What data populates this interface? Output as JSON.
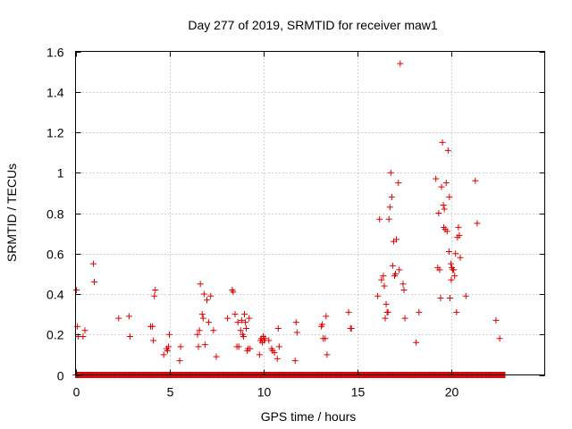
{
  "chart_data": {
    "type": "scatter",
    "title": "Day 277 of 2019, SRMTID for receiver maw1",
    "xlabel": "GPS time / hours",
    "ylabel": "SRMTID / TECUs",
    "xlim": [
      0,
      25
    ],
    "ylim": [
      0,
      1.6
    ],
    "grid": true,
    "x_ticks": [
      0,
      5,
      10,
      15,
      20
    ],
    "x_tick_labels": [
      "0",
      "5",
      "10",
      "15",
      "20"
    ],
    "y_ticks": [
      0,
      0.2,
      0.4,
      0.6,
      0.8,
      1.0,
      1.2,
      1.4,
      1.6
    ],
    "y_tick_labels": [
      "0",
      "0.2",
      "0.4",
      "0.6",
      "0.8",
      "1",
      "1.2",
      "1.4",
      "1.6"
    ],
    "marker": "plus",
    "color": "#dd0000",
    "baseline_zero_range": [
      0,
      22.9
    ],
    "series": [
      {
        "name": "maw1",
        "points": [
          [
            0.05,
            0.42
          ],
          [
            0.1,
            0.24
          ],
          [
            0.15,
            0.19
          ],
          [
            0.4,
            0.19
          ],
          [
            0.5,
            0.22
          ],
          [
            0.95,
            0.55
          ],
          [
            1.0,
            0.46
          ],
          [
            2.3,
            0.28
          ],
          [
            2.85,
            0.29
          ],
          [
            2.9,
            0.19
          ],
          [
            4.0,
            0.24
          ],
          [
            4.1,
            0.24
          ],
          [
            4.15,
            0.17
          ],
          [
            4.2,
            0.39
          ],
          [
            4.25,
            0.42
          ],
          [
            4.7,
            0.1
          ],
          [
            4.85,
            0.13
          ],
          [
            4.9,
            0.12
          ],
          [
            4.95,
            0.14
          ],
          [
            5.0,
            0.2
          ],
          [
            5.55,
            0.07
          ],
          [
            5.6,
            0.14
          ],
          [
            6.5,
            0.2
          ],
          [
            6.55,
            0.14
          ],
          [
            6.6,
            0.22
          ],
          [
            6.65,
            0.45
          ],
          [
            6.75,
            0.3
          ],
          [
            6.8,
            0.28
          ],
          [
            6.85,
            0.4
          ],
          [
            6.9,
            0.15
          ],
          [
            7.0,
            0.37
          ],
          [
            7.1,
            0.26
          ],
          [
            7.2,
            0.39
          ],
          [
            7.35,
            0.22
          ],
          [
            7.5,
            0.09
          ],
          [
            8.1,
            0.28
          ],
          [
            8.35,
            0.42
          ],
          [
            8.4,
            0.41
          ],
          [
            8.5,
            0.3
          ],
          [
            8.6,
            0.14
          ],
          [
            8.65,
            0.26
          ],
          [
            8.7,
            0.14
          ],
          [
            8.8,
            0.22
          ],
          [
            8.85,
            0.27
          ],
          [
            8.9,
            0.2
          ],
          [
            8.95,
            0.19
          ],
          [
            9.0,
            0.3
          ],
          [
            9.05,
            0.26
          ],
          [
            9.1,
            0.23
          ],
          [
            9.15,
            0.12
          ],
          [
            9.2,
            0.13
          ],
          [
            9.25,
            0.28
          ],
          [
            9.3,
            0.13
          ],
          [
            9.8,
            0.1
          ],
          [
            9.85,
            0.17
          ],
          [
            9.9,
            0.18
          ],
          [
            9.95,
            0.16
          ],
          [
            10.0,
            0.19
          ],
          [
            10.05,
            0.17
          ],
          [
            10.1,
            0.18
          ],
          [
            10.3,
            0.17
          ],
          [
            10.45,
            0.13
          ],
          [
            10.5,
            0.12
          ],
          [
            10.6,
            0.11
          ],
          [
            10.75,
            0.08
          ],
          [
            10.8,
            0.23
          ],
          [
            10.85,
            0.14
          ],
          [
            11.7,
            0.07
          ],
          [
            11.75,
            0.26
          ],
          [
            11.8,
            0.21
          ],
          [
            13.1,
            0.24
          ],
          [
            13.15,
            0.25
          ],
          [
            13.2,
            0.18
          ],
          [
            13.3,
            0.18
          ],
          [
            13.35,
            0.29
          ],
          [
            13.4,
            0.1
          ],
          [
            14.55,
            0.31
          ],
          [
            14.65,
            0.23
          ],
          [
            14.7,
            0.23
          ],
          [
            16.1,
            0.39
          ],
          [
            16.2,
            0.77
          ],
          [
            16.3,
            0.47
          ],
          [
            16.4,
            0.49
          ],
          [
            16.45,
            0.44
          ],
          [
            16.5,
            0.28
          ],
          [
            16.55,
            0.35
          ],
          [
            16.6,
            0.31
          ],
          [
            16.65,
            0.31
          ],
          [
            16.7,
            0.77
          ],
          [
            16.75,
            0.83
          ],
          [
            16.8,
            1.0
          ],
          [
            16.85,
            0.88
          ],
          [
            16.9,
            0.54
          ],
          [
            16.95,
            0.66
          ],
          [
            17.0,
            0.49
          ],
          [
            17.05,
            0.5
          ],
          [
            17.1,
            0.67
          ],
          [
            17.2,
            0.95
          ],
          [
            17.25,
            0.52
          ],
          [
            17.3,
            1.54
          ],
          [
            17.45,
            0.45
          ],
          [
            17.5,
            0.42
          ],
          [
            17.55,
            0.28
          ],
          [
            18.15,
            0.16
          ],
          [
            18.3,
            0.31
          ],
          [
            19.2,
            0.97
          ],
          [
            19.3,
            0.53
          ],
          [
            19.35,
            0.8
          ],
          [
            19.4,
            0.52
          ],
          [
            19.45,
            0.38
          ],
          [
            19.5,
            0.93
          ],
          [
            19.55,
            1.15
          ],
          [
            19.6,
            0.84
          ],
          [
            19.62,
            0.73
          ],
          [
            19.65,
            0.82
          ],
          [
            19.7,
            0.72
          ],
          [
            19.75,
            0.95
          ],
          [
            19.8,
            0.71
          ],
          [
            19.85,
            1.11
          ],
          [
            19.9,
            0.61
          ],
          [
            19.92,
            0.88
          ],
          [
            19.95,
            0.38
          ],
          [
            20.0,
            0.55
          ],
          [
            20.02,
            0.47
          ],
          [
            20.05,
            0.53
          ],
          [
            20.1,
            0.52
          ],
          [
            20.15,
            0.52
          ],
          [
            20.2,
            0.49
          ],
          [
            20.25,
            0.6
          ],
          [
            20.3,
            0.31
          ],
          [
            20.35,
            0.68
          ],
          [
            20.4,
            0.73
          ],
          [
            20.45,
            0.69
          ],
          [
            20.5,
            0.58
          ],
          [
            20.8,
            0.39
          ],
          [
            21.3,
            0.96
          ],
          [
            21.4,
            0.75
          ],
          [
            22.4,
            0.27
          ],
          [
            22.6,
            0.18
          ]
        ]
      }
    ]
  }
}
